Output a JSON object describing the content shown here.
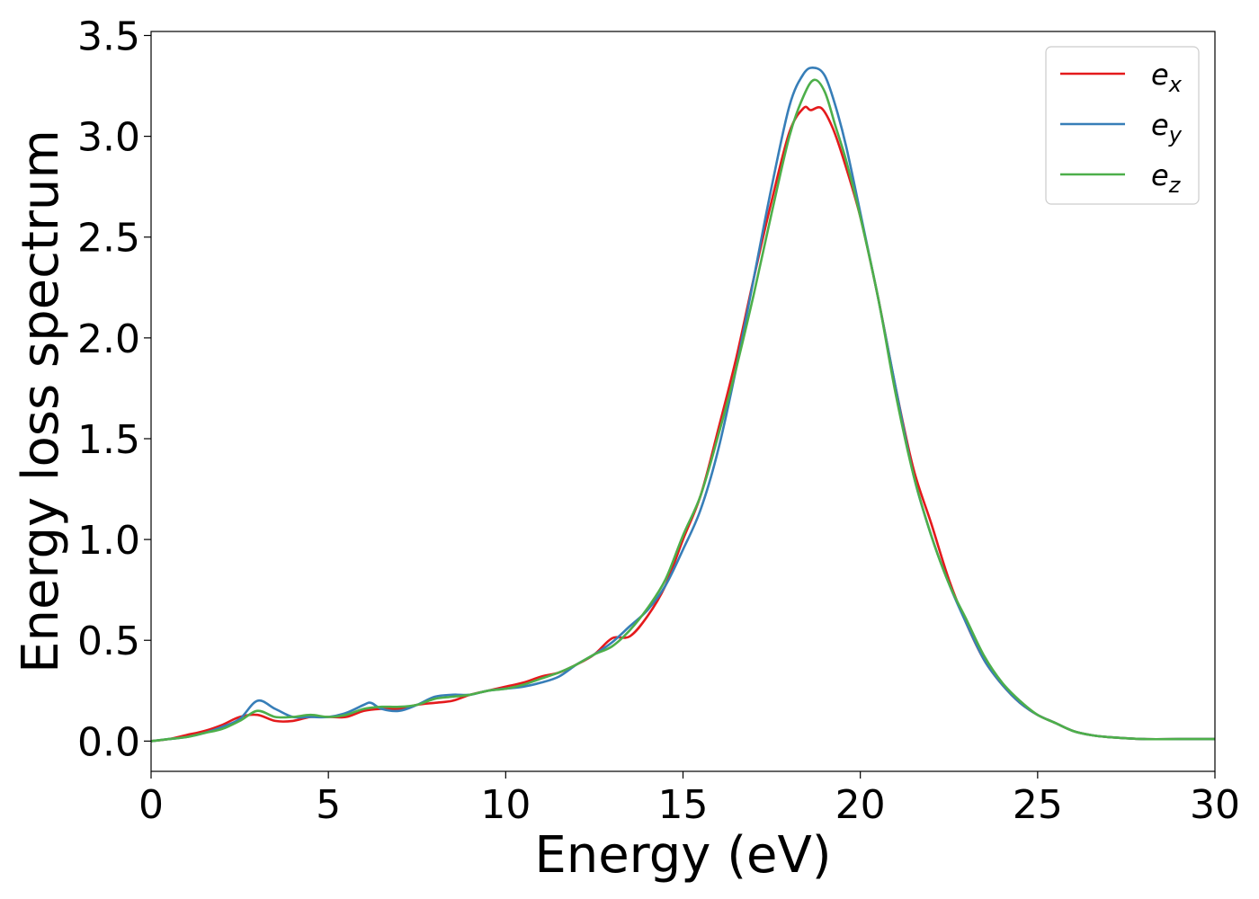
{
  "chart_data": {
    "type": "line",
    "title": "",
    "xlabel": "Energy (eV)",
    "ylabel": "Energy loss spectrum",
    "xlim": [
      0,
      30
    ],
    "ylim": [
      -0.15,
      3.52
    ],
    "xticks": [
      0,
      5,
      10,
      15,
      20,
      25,
      30
    ],
    "xtick_labels": [
      "0",
      "5",
      "10",
      "15",
      "20",
      "25",
      "30"
    ],
    "yticks": [
      0.0,
      0.5,
      1.0,
      1.5,
      2.0,
      2.5,
      3.0,
      3.5
    ],
    "ytick_labels": [
      "0.0",
      "0.5",
      "1.0",
      "1.5",
      "2.0",
      "2.5",
      "3.0",
      "3.5"
    ],
    "grid": false,
    "legend_position": "top-right",
    "series": [
      {
        "name": "e",
        "subscript": "x",
        "color": "#e41a1c",
        "x": [
          0,
          0.5,
          1,
          1.5,
          2,
          2.5,
          3,
          3.5,
          4,
          4.5,
          5,
          5.5,
          6,
          6.5,
          7,
          7.5,
          8,
          8.5,
          9,
          9.5,
          10,
          10.5,
          11,
          11.5,
          12,
          12.5,
          13,
          13.5,
          14,
          14.5,
          15,
          15.5,
          16,
          16.5,
          17,
          17.5,
          18,
          18.4,
          18.6,
          18.9,
          19.2,
          19.5,
          20,
          20.5,
          21,
          21.5,
          22,
          22.5,
          23,
          23.5,
          24,
          24.5,
          25,
          25.5,
          26,
          26.5,
          27,
          28,
          29,
          30
        ],
        "y": [
          0,
          0.01,
          0.03,
          0.05,
          0.08,
          0.12,
          0.13,
          0.1,
          0.1,
          0.12,
          0.12,
          0.12,
          0.15,
          0.16,
          0.16,
          0.18,
          0.19,
          0.2,
          0.23,
          0.25,
          0.27,
          0.29,
          0.32,
          0.34,
          0.38,
          0.43,
          0.51,
          0.52,
          0.62,
          0.77,
          1.0,
          1.22,
          1.55,
          1.9,
          2.3,
          2.68,
          3.02,
          3.14,
          3.13,
          3.14,
          3.05,
          2.9,
          2.6,
          2.2,
          1.75,
          1.35,
          1.08,
          0.8,
          0.58,
          0.4,
          0.28,
          0.19,
          0.13,
          0.09,
          0.05,
          0.03,
          0.02,
          0.01,
          0.01,
          0.01
        ]
      },
      {
        "name": "e",
        "subscript": "y",
        "color": "#377eb8",
        "x": [
          0,
          0.5,
          1,
          1.5,
          2,
          2.5,
          3,
          3.5,
          4,
          4.5,
          5,
          5.5,
          6,
          6.2,
          6.5,
          7,
          7.5,
          8,
          8.5,
          9,
          9.5,
          10,
          10.5,
          11,
          11.5,
          12,
          12.5,
          13,
          13.5,
          14,
          14.5,
          15,
          15.5,
          16,
          16.5,
          17,
          17.5,
          18,
          18.4,
          18.7,
          19,
          19.3,
          19.6,
          20,
          20.5,
          21,
          21.5,
          22,
          22.5,
          23,
          23.5,
          24,
          24.5,
          25,
          25.5,
          26,
          26.5,
          27,
          28,
          29,
          30
        ],
        "y": [
          0,
          0.01,
          0.02,
          0.04,
          0.07,
          0.11,
          0.2,
          0.16,
          0.12,
          0.12,
          0.12,
          0.14,
          0.18,
          0.19,
          0.16,
          0.15,
          0.18,
          0.22,
          0.23,
          0.23,
          0.25,
          0.26,
          0.27,
          0.29,
          0.32,
          0.38,
          0.43,
          0.49,
          0.57,
          0.65,
          0.77,
          0.95,
          1.15,
          1.45,
          1.85,
          2.3,
          2.75,
          3.15,
          3.31,
          3.34,
          3.3,
          3.15,
          2.95,
          2.62,
          2.2,
          1.75,
          1.32,
          1.02,
          0.78,
          0.58,
          0.4,
          0.28,
          0.19,
          0.13,
          0.09,
          0.05,
          0.03,
          0.02,
          0.01,
          0.01,
          0.01
        ]
      },
      {
        "name": "e",
        "subscript": "z",
        "color": "#4daf4a",
        "x": [
          0,
          0.5,
          1,
          1.5,
          2,
          2.5,
          3,
          3.5,
          4,
          4.5,
          5,
          5.5,
          6,
          6.5,
          7,
          7.5,
          8,
          8.5,
          9,
          9.5,
          10,
          10.5,
          11,
          11.5,
          12,
          12.5,
          13,
          13.5,
          14,
          14.5,
          15,
          15.5,
          16,
          16.5,
          17,
          17.5,
          18,
          18.4,
          18.7,
          19,
          19.3,
          19.6,
          20,
          20.5,
          21,
          21.5,
          22,
          22.5,
          23,
          23.5,
          24,
          24.5,
          25,
          25.5,
          26,
          26.5,
          27,
          28,
          29,
          30
        ],
        "y": [
          0,
          0.01,
          0.02,
          0.04,
          0.06,
          0.1,
          0.15,
          0.12,
          0.12,
          0.13,
          0.12,
          0.13,
          0.16,
          0.17,
          0.17,
          0.18,
          0.21,
          0.22,
          0.23,
          0.25,
          0.26,
          0.28,
          0.31,
          0.34,
          0.38,
          0.43,
          0.47,
          0.55,
          0.66,
          0.8,
          1.02,
          1.22,
          1.52,
          1.85,
          2.22,
          2.62,
          3.0,
          3.2,
          3.28,
          3.22,
          3.05,
          2.88,
          2.6,
          2.2,
          1.72,
          1.32,
          1.02,
          0.78,
          0.6,
          0.42,
          0.29,
          0.2,
          0.13,
          0.09,
          0.05,
          0.03,
          0.02,
          0.01,
          0.01,
          0.01
        ]
      }
    ]
  }
}
